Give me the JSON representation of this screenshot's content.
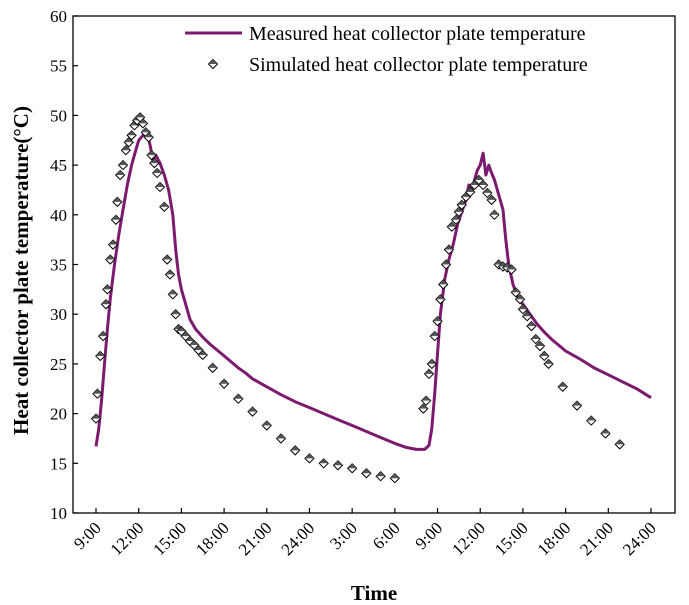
{
  "chart_data": {
    "type": "line",
    "title": "",
    "xlabel": "Time",
    "ylabel": "Heat collector plate temperature(°C)",
    "ylim": [
      10,
      60
    ],
    "yticks": [
      "10",
      "15",
      "20",
      "25",
      "30",
      "35",
      "40",
      "45",
      "50",
      "55",
      "60"
    ],
    "xlim": [
      9,
      57
    ],
    "xticks": [
      {
        "x": 9,
        "label": "9:00"
      },
      {
        "x": 12,
        "label": "12:00"
      },
      {
        "x": 15,
        "label": "15:00"
      },
      {
        "x": 18,
        "label": "18:00"
      },
      {
        "x": 21,
        "label": "21:00"
      },
      {
        "x": 24,
        "label": "24:00"
      },
      {
        "x": 27,
        "label": "3:00"
      },
      {
        "x": 30,
        "label": "6:00"
      },
      {
        "x": 33,
        "label": "9:00"
      },
      {
        "x": 36,
        "label": "12:00"
      },
      {
        "x": 39,
        "label": "15:00"
      },
      {
        "x": 42,
        "label": "18:00"
      },
      {
        "x": 45,
        "label": "21:00"
      },
      {
        "x": 48,
        "label": "24:00"
      }
    ],
    "grid": false,
    "legend_position": "top-right",
    "series": [
      {
        "name": "Measured heat collector plate temperature",
        "kind": "line",
        "color": "#7b1a6e",
        "points": [
          [
            9.0,
            16.7
          ],
          [
            9.2,
            18.5
          ],
          [
            9.4,
            21.5
          ],
          [
            9.6,
            25.0
          ],
          [
            9.8,
            28.5
          ],
          [
            10.0,
            31.5
          ],
          [
            10.3,
            35.0
          ],
          [
            10.6,
            38.0
          ],
          [
            10.9,
            40.5
          ],
          [
            11.2,
            43.0
          ],
          [
            11.5,
            45.0
          ],
          [
            11.8,
            46.5
          ],
          [
            12.0,
            47.5
          ],
          [
            12.3,
            48.0
          ],
          [
            12.6,
            48.2
          ],
          [
            12.8,
            47.0
          ],
          [
            13.0,
            45.5
          ],
          [
            13.2,
            46.0
          ],
          [
            13.5,
            45.2
          ],
          [
            13.8,
            44.0
          ],
          [
            14.1,
            42.5
          ],
          [
            14.4,
            40.0
          ],
          [
            14.6,
            36.5
          ],
          [
            14.8,
            34.0
          ],
          [
            15.0,
            32.5
          ],
          [
            15.3,
            31.0
          ],
          [
            15.6,
            29.5
          ],
          [
            16.0,
            28.5
          ],
          [
            16.5,
            27.7
          ],
          [
            17.0,
            27.0
          ],
          [
            17.5,
            26.4
          ],
          [
            18.0,
            25.8
          ],
          [
            18.5,
            25.2
          ],
          [
            19.0,
            24.6
          ],
          [
            19.5,
            24.1
          ],
          [
            20.0,
            23.5
          ],
          [
            21.0,
            22.7
          ],
          [
            22.0,
            21.9
          ],
          [
            23.0,
            21.2
          ],
          [
            24.0,
            20.6
          ],
          [
            25.0,
            20.0
          ],
          [
            26.0,
            19.4
          ],
          [
            27.0,
            18.8
          ],
          [
            28.0,
            18.2
          ],
          [
            29.0,
            17.6
          ],
          [
            30.0,
            17.0
          ],
          [
            30.8,
            16.6
          ],
          [
            31.5,
            16.4
          ],
          [
            32.1,
            16.4
          ],
          [
            32.4,
            16.8
          ],
          [
            32.6,
            18.5
          ],
          [
            32.8,
            22.0
          ],
          [
            33.0,
            26.0
          ],
          [
            33.2,
            30.0
          ],
          [
            33.5,
            33.5
          ],
          [
            33.8,
            35.5
          ],
          [
            34.1,
            37.0
          ],
          [
            34.4,
            39.0
          ],
          [
            34.7,
            40.3
          ],
          [
            35.0,
            41.5
          ],
          [
            35.2,
            43.0
          ],
          [
            35.4,
            42.2
          ],
          [
            35.6,
            43.5
          ],
          [
            35.8,
            44.5
          ],
          [
            36.0,
            45.0
          ],
          [
            36.2,
            46.2
          ],
          [
            36.4,
            44.0
          ],
          [
            36.6,
            45.0
          ],
          [
            36.8,
            44.2
          ],
          [
            37.0,
            43.5
          ],
          [
            37.2,
            42.5
          ],
          [
            37.4,
            41.5
          ],
          [
            37.6,
            40.5
          ],
          [
            37.8,
            37.5
          ],
          [
            38.0,
            35.0
          ],
          [
            38.3,
            33.0
          ],
          [
            38.6,
            31.8
          ],
          [
            39.0,
            31.0
          ],
          [
            39.5,
            30.0
          ],
          [
            40.0,
            29.0
          ],
          [
            40.5,
            28.2
          ],
          [
            41.0,
            27.5
          ],
          [
            41.5,
            26.9
          ],
          [
            42.0,
            26.3
          ],
          [
            43.0,
            25.5
          ],
          [
            44.0,
            24.6
          ],
          [
            45.0,
            23.9
          ],
          [
            46.0,
            23.2
          ],
          [
            47.0,
            22.5
          ],
          [
            48.0,
            21.6
          ]
        ]
      },
      {
        "name": "Simulated heat collector plate temperature",
        "kind": "scatter",
        "color": "#555555",
        "points": [
          [
            9.0,
            19.5
          ],
          [
            9.1,
            22.0
          ],
          [
            9.3,
            25.8
          ],
          [
            9.5,
            27.8
          ],
          [
            9.7,
            31.0
          ],
          [
            9.8,
            32.5
          ],
          [
            10.0,
            35.5
          ],
          [
            10.2,
            37.0
          ],
          [
            10.4,
            39.5
          ],
          [
            10.5,
            41.3
          ],
          [
            10.7,
            44.0
          ],
          [
            10.9,
            45.0
          ],
          [
            11.1,
            46.5
          ],
          [
            11.3,
            47.3
          ],
          [
            11.5,
            48.0
          ],
          [
            11.7,
            49.0
          ],
          [
            11.9,
            49.5
          ],
          [
            12.1,
            49.8
          ],
          [
            12.3,
            49.2
          ],
          [
            12.5,
            48.3
          ],
          [
            12.7,
            47.8
          ],
          [
            12.9,
            46.0
          ],
          [
            13.1,
            45.2
          ],
          [
            13.3,
            44.2
          ],
          [
            13.5,
            42.8
          ],
          [
            13.8,
            40.8
          ],
          [
            14.0,
            35.5
          ],
          [
            14.2,
            34.0
          ],
          [
            14.4,
            32.0
          ],
          [
            14.6,
            30.0
          ],
          [
            14.8,
            28.5
          ],
          [
            15.0,
            28.3
          ],
          [
            15.3,
            27.8
          ],
          [
            15.6,
            27.3
          ],
          [
            15.9,
            26.9
          ],
          [
            16.2,
            26.4
          ],
          [
            16.5,
            25.9
          ],
          [
            17.2,
            24.6
          ],
          [
            18.0,
            23.0
          ],
          [
            19.0,
            21.5
          ],
          [
            20.0,
            20.2
          ],
          [
            21.0,
            18.8
          ],
          [
            22.0,
            17.5
          ],
          [
            23.0,
            16.3
          ],
          [
            24.0,
            15.5
          ],
          [
            25.0,
            15.0
          ],
          [
            26.0,
            14.8
          ],
          [
            27.0,
            14.5
          ],
          [
            28.0,
            14.0
          ],
          [
            29.0,
            13.7
          ],
          [
            30.0,
            13.5
          ],
          [
            32.0,
            20.5
          ],
          [
            32.2,
            21.3
          ],
          [
            32.4,
            24.0
          ],
          [
            32.6,
            25.0
          ],
          [
            32.8,
            27.8
          ],
          [
            33.0,
            29.3
          ],
          [
            33.2,
            31.5
          ],
          [
            33.4,
            33.0
          ],
          [
            33.6,
            35.0
          ],
          [
            33.8,
            36.5
          ],
          [
            34.0,
            38.8
          ],
          [
            34.3,
            39.5
          ],
          [
            34.5,
            40.3
          ],
          [
            34.7,
            41.0
          ],
          [
            35.0,
            41.8
          ],
          [
            35.3,
            42.3
          ],
          [
            35.6,
            43.0
          ],
          [
            35.9,
            43.5
          ],
          [
            36.2,
            43.0
          ],
          [
            36.5,
            42.2
          ],
          [
            36.8,
            41.5
          ],
          [
            37.0,
            40.0
          ],
          [
            37.3,
            35.0
          ],
          [
            37.6,
            34.8
          ],
          [
            37.9,
            34.7
          ],
          [
            38.2,
            34.5
          ],
          [
            38.5,
            32.2
          ],
          [
            38.8,
            31.5
          ],
          [
            39.0,
            30.5
          ],
          [
            39.3,
            29.8
          ],
          [
            39.6,
            28.8
          ],
          [
            39.9,
            27.5
          ],
          [
            40.2,
            26.8
          ],
          [
            40.5,
            25.8
          ],
          [
            40.8,
            25.0
          ],
          [
            41.8,
            22.7
          ],
          [
            42.8,
            20.8
          ],
          [
            43.8,
            19.3
          ],
          [
            44.8,
            18.0
          ],
          [
            45.8,
            16.9
          ]
        ]
      }
    ]
  }
}
